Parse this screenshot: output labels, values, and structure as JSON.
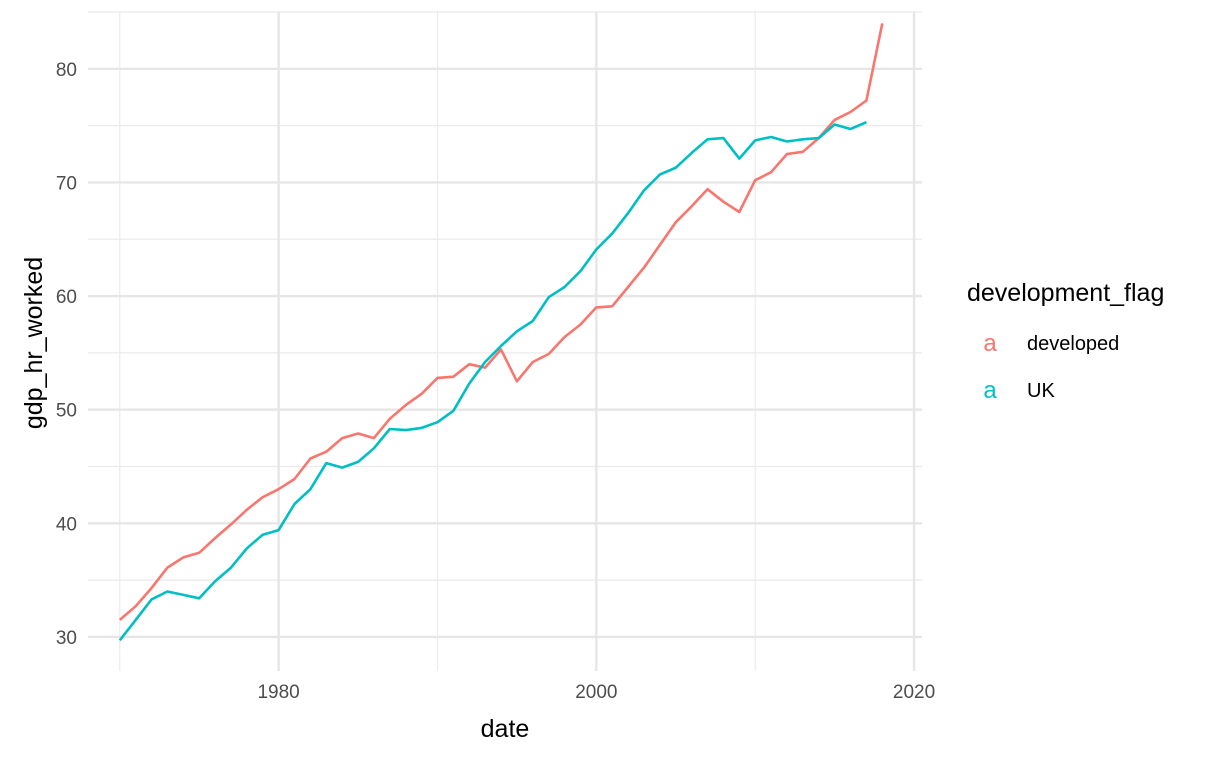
{
  "chart_data": {
    "type": "line",
    "title": "",
    "xlabel": "date",
    "ylabel": "gdp_hr_worked",
    "xlim": [
      1968,
      2020.5
    ],
    "ylim": [
      27,
      85
    ],
    "x_ticks": [
      1980,
      2000,
      2020
    ],
    "x_tick_labels": [
      "1980",
      "2000",
      "2020"
    ],
    "y_ticks": [
      30,
      40,
      50,
      60,
      70,
      80
    ],
    "y_tick_labels": [
      "30",
      "40",
      "50",
      "60",
      "70",
      "80"
    ],
    "grid": true,
    "legend": {
      "title": "development_flag",
      "position": "right",
      "key_glyph": "a"
    },
    "colors": {
      "developed": "#F8766D",
      "UK": "#00BFC4"
    },
    "series": [
      {
        "name": "developed",
        "x": [
          1970,
          1971,
          1972,
          1973,
          1974,
          1975,
          1976,
          1977,
          1978,
          1979,
          1980,
          1981,
          1982,
          1983,
          1984,
          1985,
          1986,
          1987,
          1988,
          1989,
          1990,
          1991,
          1992,
          1993,
          1994,
          1995,
          1996,
          1997,
          1998,
          1999,
          2000,
          2001,
          2002,
          2003,
          2004,
          2005,
          2006,
          2007,
          2008,
          2009,
          2010,
          2011,
          2012,
          2013,
          2014,
          2015,
          2016,
          2017,
          2018
        ],
        "values": [
          31.5,
          32.7,
          34.3,
          36.1,
          37.0,
          37.4,
          38.7,
          39.9,
          41.2,
          42.3,
          43.0,
          43.9,
          45.7,
          46.3,
          47.5,
          47.9,
          47.5,
          49.2,
          50.4,
          51.4,
          52.8,
          52.9,
          54.0,
          53.7,
          55.3,
          52.5,
          54.2,
          54.9,
          56.4,
          57.5,
          59.0,
          59.1,
          60.8,
          62.5,
          64.5,
          66.5,
          67.9,
          69.4,
          68.3,
          67.4,
          70.2,
          70.9,
          72.5,
          72.7,
          73.9,
          75.5,
          76.2,
          77.2,
          84.0
        ]
      },
      {
        "name": "UK",
        "x": [
          1970,
          1971,
          1972,
          1973,
          1974,
          1975,
          1976,
          1977,
          1978,
          1979,
          1980,
          1981,
          1982,
          1983,
          1984,
          1985,
          1986,
          1987,
          1988,
          1989,
          1990,
          1991,
          1992,
          1993,
          1994,
          1995,
          1996,
          1997,
          1998,
          1999,
          2000,
          2001,
          2002,
          2003,
          2004,
          2005,
          2006,
          2007,
          2008,
          2009,
          2010,
          2011,
          2012,
          2013,
          2014,
          2015,
          2016,
          2017
        ],
        "values": [
          29.7,
          31.5,
          33.3,
          34.0,
          33.7,
          33.4,
          34.9,
          36.1,
          37.8,
          39.0,
          39.4,
          41.7,
          43.0,
          45.3,
          44.9,
          45.4,
          46.6,
          48.3,
          48.2,
          48.4,
          48.9,
          49.9,
          52.3,
          54.2,
          55.6,
          56.9,
          57.8,
          59.9,
          60.8,
          62.2,
          64.1,
          65.5,
          67.3,
          69.3,
          70.7,
          71.3,
          72.6,
          73.8,
          73.9,
          72.1,
          73.7,
          74.0,
          73.6,
          73.8,
          73.9,
          75.1,
          74.7,
          75.3
        ]
      }
    ]
  }
}
